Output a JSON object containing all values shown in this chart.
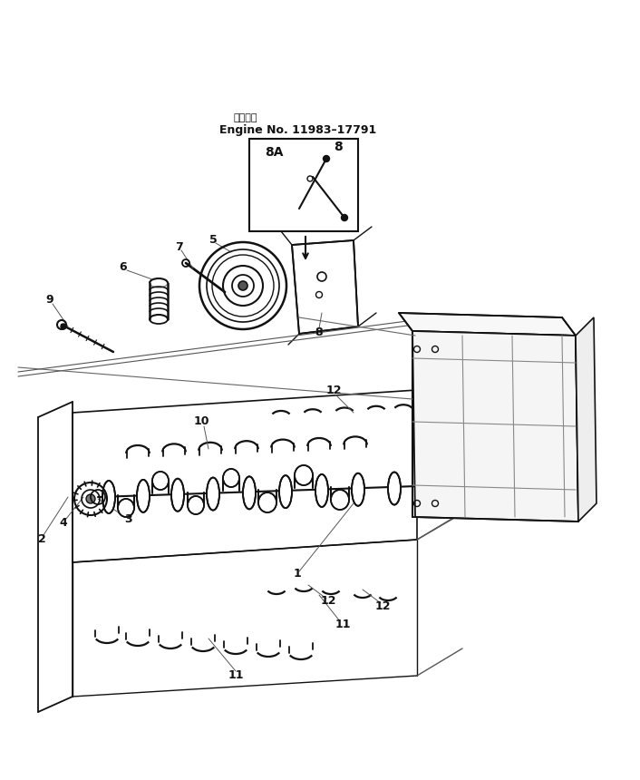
{
  "bg_color": "#ffffff",
  "line_color": "#111111",
  "label_color": "#111111",
  "title_jp": "適用号簺",
  "title_en": "Engine No. 11983–17791",
  "figsize": [
    7.06,
    8.6
  ],
  "dpi": 100
}
